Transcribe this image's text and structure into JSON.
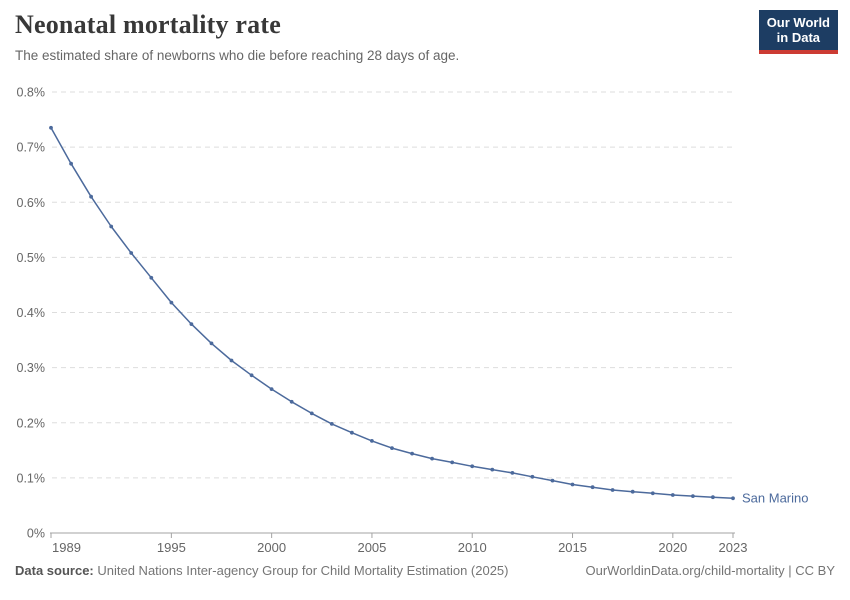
{
  "header": {
    "title": "Neonatal mortality rate",
    "subtitle": "The estimated share of newborns who die before reaching 28 days of age.",
    "logo": {
      "line1": "Our World",
      "line2": "in Data"
    }
  },
  "chart_data": {
    "type": "line",
    "title": "Neonatal mortality rate",
    "xlabel": "",
    "ylabel": "",
    "x": [
      1989,
      1990,
      1991,
      1992,
      1993,
      1994,
      1995,
      1996,
      1997,
      1998,
      1999,
      2000,
      2001,
      2002,
      2003,
      2004,
      2005,
      2006,
      2007,
      2008,
      2009,
      2010,
      2011,
      2012,
      2013,
      2014,
      2015,
      2016,
      2017,
      2018,
      2019,
      2020,
      2021,
      2022,
      2023
    ],
    "series": [
      {
        "name": "San Marino",
        "color": "#4C6A9C",
        "values": [
          0.735,
          0.67,
          0.61,
          0.556,
          0.508,
          0.463,
          0.418,
          0.379,
          0.344,
          0.313,
          0.286,
          0.261,
          0.238,
          0.217,
          0.198,
          0.182,
          0.167,
          0.154,
          0.144,
          0.135,
          0.128,
          0.121,
          0.115,
          0.109,
          0.102,
          0.095,
          0.088,
          0.083,
          0.078,
          0.075,
          0.072,
          0.069,
          0.067,
          0.065,
          0.063
        ]
      }
    ],
    "xlim": [
      1989,
      2023
    ],
    "ylim": [
      0,
      0.8
    ],
    "grid": "horizontal-dashed",
    "legend_position": "end-of-line-label",
    "end_label": "San Marino",
    "y_ticks": [
      {
        "v": 0,
        "label": "0%"
      },
      {
        "v": 0.1,
        "label": "0.1%"
      },
      {
        "v": 0.2,
        "label": "0.2%"
      },
      {
        "v": 0.3,
        "label": "0.3%"
      },
      {
        "v": 0.4,
        "label": "0.4%"
      },
      {
        "v": 0.5,
        "label": "0.5%"
      },
      {
        "v": 0.6,
        "label": "0.6%"
      },
      {
        "v": 0.7,
        "label": "0.7%"
      },
      {
        "v": 0.8,
        "label": "0.8%"
      }
    ],
    "x_ticks": [
      {
        "v": 1989,
        "label": "1989"
      },
      {
        "v": 1995,
        "label": "1995"
      },
      {
        "v": 2000,
        "label": "2000"
      },
      {
        "v": 2005,
        "label": "2005"
      },
      {
        "v": 2010,
        "label": "2010"
      },
      {
        "v": 2015,
        "label": "2015"
      },
      {
        "v": 2020,
        "label": "2020"
      },
      {
        "v": 2023,
        "label": "2023"
      }
    ]
  },
  "footer": {
    "datasource_label": "Data source:",
    "datasource_value": " United Nations Inter-agency Group for Child Mortality Estimation (2025)",
    "attribution": "OurWorldinData.org/child-mortality | CC BY"
  },
  "colors": {
    "line": "#4C6A9C",
    "title_text": "#383838",
    "subtitle_text": "#666666",
    "axis_text": "#666666",
    "grid": "#dddddd",
    "axis_line": "#a3a3a3",
    "logo_background": "#1d3d63",
    "logo_underline": "#cc3b33",
    "footer_text": "#757575"
  }
}
